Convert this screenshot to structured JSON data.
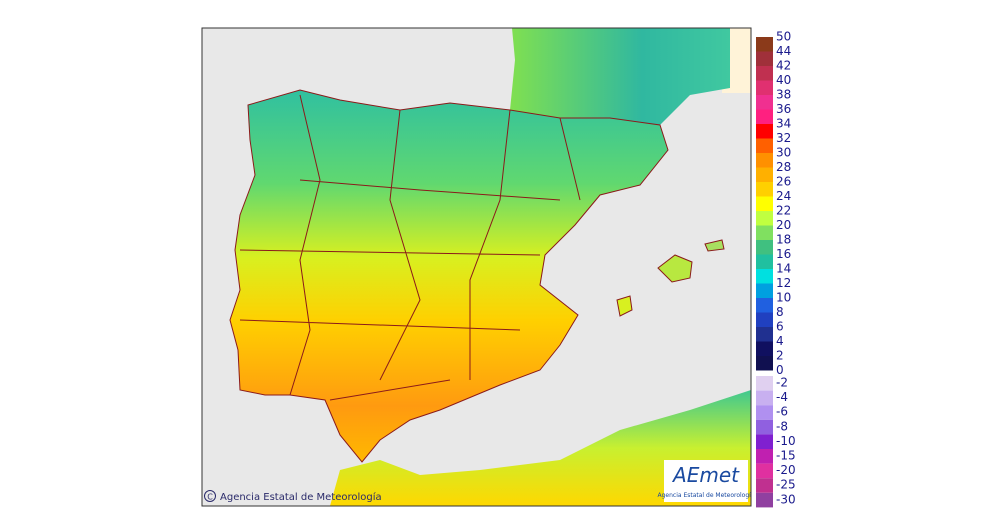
{
  "map": {
    "copyright": "Agencia Estatal de Meteorología",
    "logo": {
      "name": "AEmet",
      "subtitle": "Agencia Estatal de Meteorología"
    }
  },
  "legend": {
    "positive": [
      50,
      44,
      42,
      40,
      38,
      36,
      34,
      32,
      30,
      28,
      26,
      24,
      22,
      20,
      18,
      16,
      14,
      12,
      10,
      8,
      6,
      4,
      2,
      0
    ],
    "negative": [
      -2,
      -4,
      -6,
      -8,
      -10,
      -15,
      -20,
      -25,
      -30
    ]
  }
}
